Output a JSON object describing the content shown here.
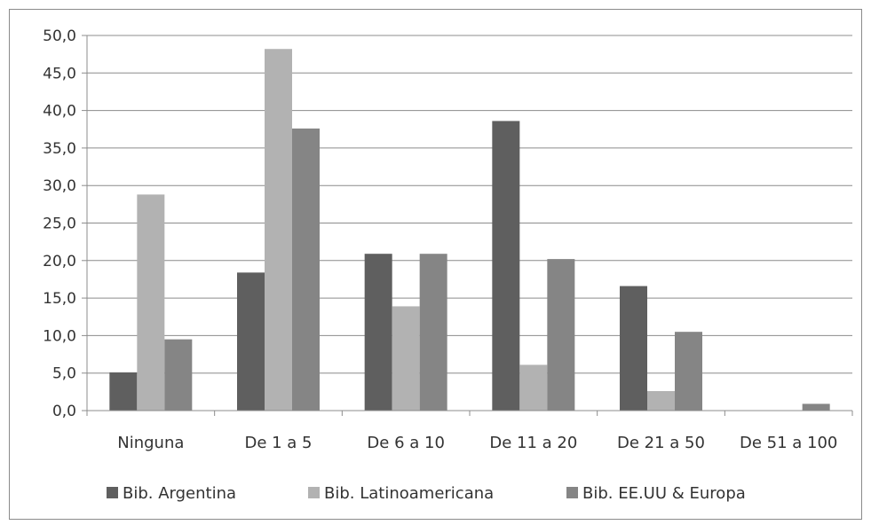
{
  "chart_data": {
    "type": "bar",
    "categories": [
      "Ninguna",
      "De 1 a 5",
      "De 6 a 10",
      "De 11 a 20",
      "De 21 a 50",
      "De 51 a 100"
    ],
    "series": [
      {
        "name": "Bib. Argentina",
        "color": "#5f5f5f",
        "values": [
          5.1,
          18.4,
          20.9,
          38.6,
          16.6,
          0.0
        ]
      },
      {
        "name": "Bib. Latinoamericana",
        "color": "#b2b2b2",
        "values": [
          28.8,
          48.2,
          13.9,
          6.1,
          2.6,
          0.0
        ]
      },
      {
        "name": "Bib. EE.UU & Europa",
        "color": "#858585",
        "values": [
          9.5,
          37.6,
          20.9,
          20.2,
          10.5,
          0.9
        ]
      }
    ],
    "yticks": [
      "0,0",
      "5,0",
      "10,0",
      "15,0",
      "20,0",
      "25,0",
      "30,0",
      "35,0",
      "40,0",
      "45,0",
      "50,0"
    ],
    "ylim": [
      0,
      50
    ],
    "grid": true,
    "legend_position": "bottom"
  }
}
